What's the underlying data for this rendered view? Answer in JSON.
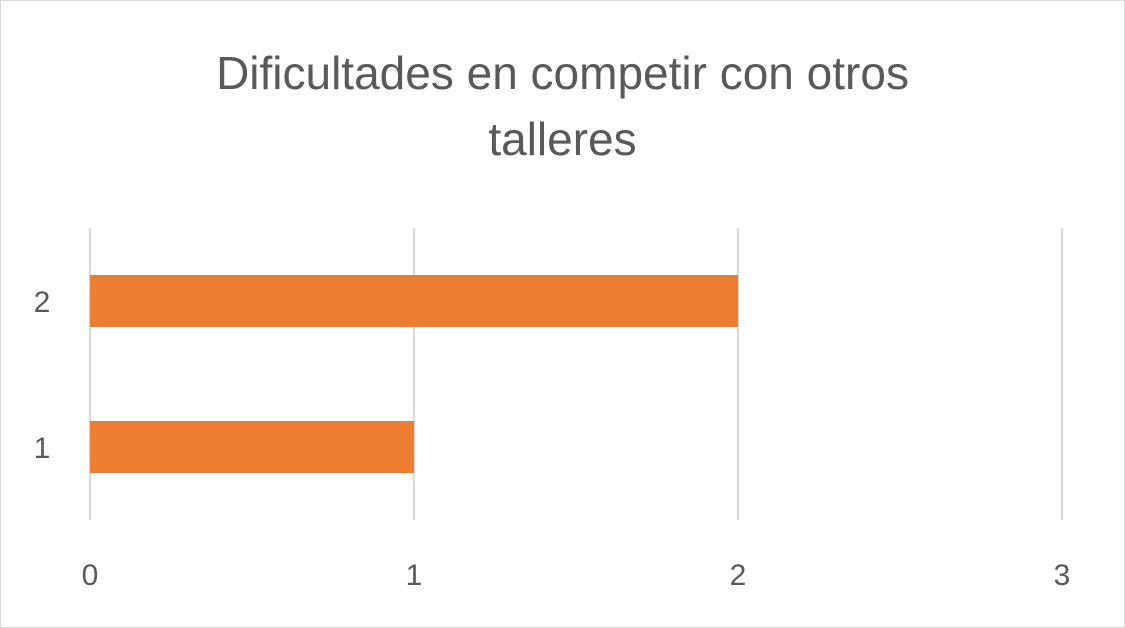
{
  "chart_data": {
    "type": "bar",
    "orientation": "horizontal",
    "title_lines": [
      "Dificultades en competir con otros",
      "talleres"
    ],
    "categories": [
      "1",
      "2"
    ],
    "values": [
      1,
      2
    ],
    "xlim": [
      0,
      3
    ],
    "x_ticks": [
      "0",
      "1",
      "2",
      "3"
    ],
    "grid": true,
    "bar_color": "#ED7D31",
    "grid_color": "#d9d9d9",
    "text_color": "#595959"
  }
}
